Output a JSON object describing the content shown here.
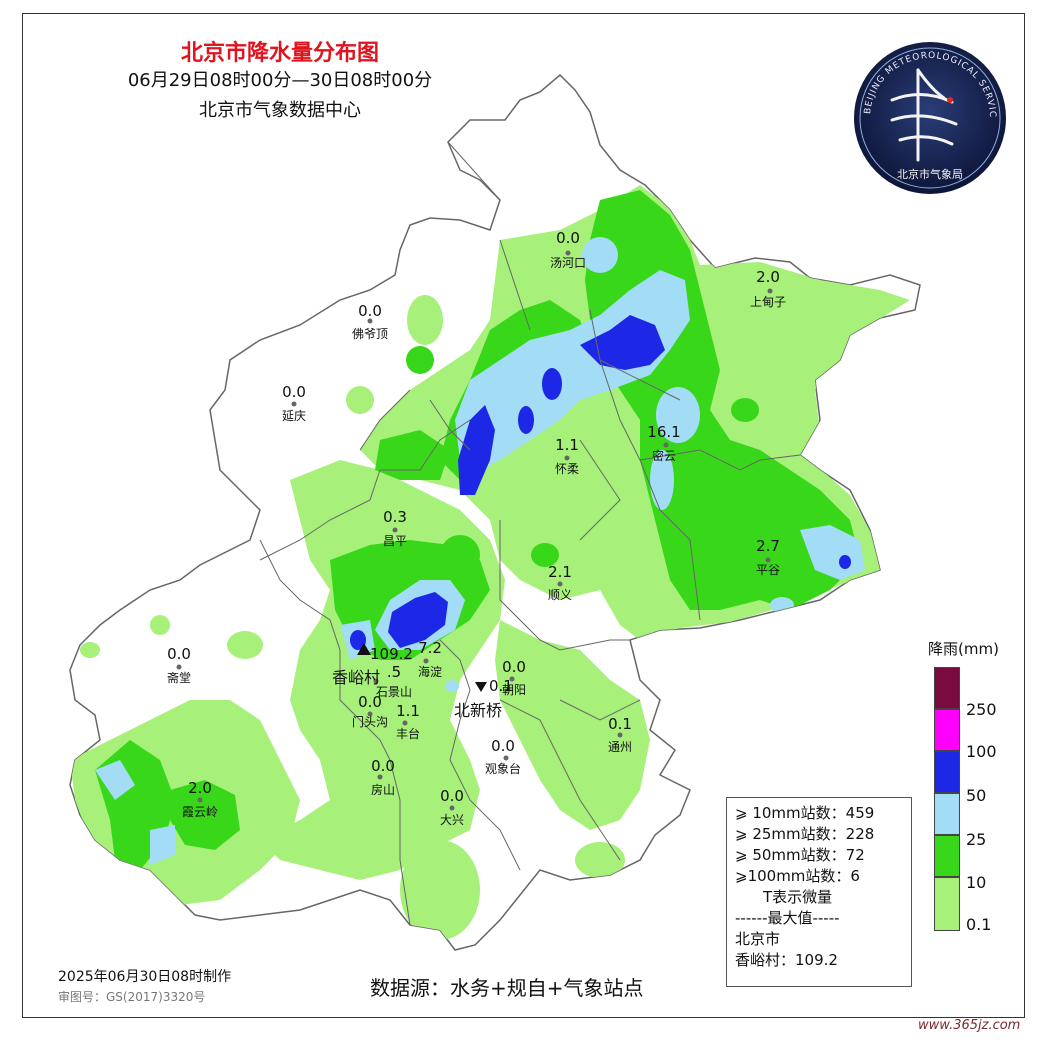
{
  "title": {
    "main": "北京市降水量分布图",
    "period": "06月29日08时00分—30日08时00分",
    "org": "北京市气象数据中心"
  },
  "logo": {
    "ring_text": "BEIJING METEOROLOGICAL SERVICE",
    "cn_text": "北京市气象局"
  },
  "stations": [
    {
      "id": "tanghekou",
      "name": "汤河口",
      "value": "0.0"
    },
    {
      "id": "shangdianzi",
      "name": "上甸子",
      "value": "2.0"
    },
    {
      "id": "foyeding",
      "name": "佛爷顶",
      "value": "0.0"
    },
    {
      "id": "yanqing",
      "name": "延庆",
      "value": "0.0"
    },
    {
      "id": "huairou",
      "name": "怀柔",
      "value": "1.1"
    },
    {
      "id": "miyun",
      "name": "密云",
      "value": "16.1"
    },
    {
      "id": "changping",
      "name": "昌平",
      "value": "0.3"
    },
    {
      "id": "pinggu",
      "name": "平谷",
      "value": "2.7"
    },
    {
      "id": "shunyi",
      "name": "顺义",
      "value": "2.1"
    },
    {
      "id": "zhaitang",
      "name": "斋堂",
      "value": "0.0"
    },
    {
      "id": "haidian",
      "name": "海淀",
      "value": "7.2"
    },
    {
      "id": "chaoyang",
      "name": "朝阳",
      "value": "0.0"
    },
    {
      "id": "shijingshan",
      "name": "石景山",
      "value": ".5"
    },
    {
      "id": "mentougou",
      "name": "门头沟",
      "value": "0.0"
    },
    {
      "id": "fengtai",
      "name": "丰台",
      "value": "1.1"
    },
    {
      "id": "tongzhou",
      "name": "通州",
      "value": "0.1"
    },
    {
      "id": "guanxiangtai",
      "name": "观象台",
      "value": "0.0"
    },
    {
      "id": "fangshan",
      "name": "房山",
      "value": "0.0"
    },
    {
      "id": "xiayunling",
      "name": "霞云岭",
      "value": "2.0"
    },
    {
      "id": "daxing",
      "name": "大兴",
      "value": "0.0"
    }
  ],
  "extremes": {
    "max_station": "香峪村",
    "max_value": "109.2",
    "min_station": "北新桥",
    "min_value": "0.1"
  },
  "legend": {
    "title": "降雨(mm)",
    "levels": [
      {
        "label": "250",
        "color": "#7a0b3f"
      },
      {
        "label": "100",
        "color": "#ff00ff"
      },
      {
        "label": "50",
        "color": "#1c28e6"
      },
      {
        "label": "25",
        "color": "#a3dcf5"
      },
      {
        "label": "10",
        "color": "#38d71a"
      },
      {
        "label": "0.1",
        "color": "#a7f07a"
      }
    ]
  },
  "stats": {
    "line1": "⩾ 10mm站数：459",
    "line2": "⩾ 25mm站数：228",
    "line3": "⩾ 50mm站数：72",
    "line4": "⩾100mm站数：6",
    "line5": "T表示微量",
    "line6": "------最大值-----",
    "line7": "北京市",
    "line8": "香峪村：109.2"
  },
  "footer": {
    "made": "2025年06月30日08时制作",
    "review": "审图号：GS(2017)3320号",
    "source": "数据源：水务+规自+气象站点",
    "watermark": "www.365jz.com"
  },
  "colors": {
    "title_red": "#e0141e",
    "light_green": "#a7f07a",
    "green": "#38d71a",
    "light_blue": "#a3dcf5",
    "blue": "#1c28e6",
    "border": "#666666"
  }
}
